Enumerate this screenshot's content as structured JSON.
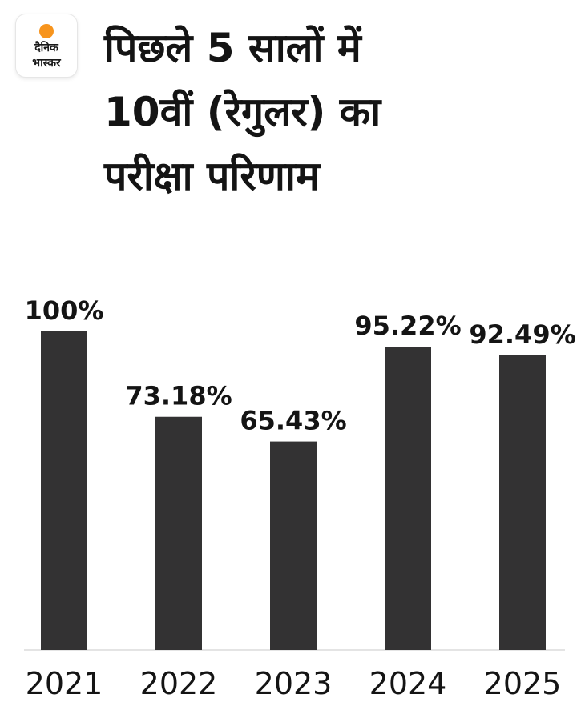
{
  "logo": {
    "line1": "दैनिक",
    "line2": "भास्कर",
    "accent_color": "#f7941d"
  },
  "title_lines": [
    "पिछले 5 सालों में",
    "10वीं (रेगुलर) का",
    "परीक्षा परिणाम"
  ],
  "chart_data": {
    "type": "bar",
    "categories": [
      "2021",
      "2022",
      "2023",
      "2024",
      "2025"
    ],
    "values": [
      100,
      73.18,
      65.43,
      95.22,
      92.49
    ],
    "value_labels": [
      "100%",
      "73.18%",
      "65.43%",
      "95.22%",
      "92.49%"
    ],
    "title": "पिछले 5 सालों में 10वीं (रेगुलर) का परीक्षा परिणाम",
    "xlabel": "",
    "ylabel": "",
    "ylim": [
      0,
      100
    ],
    "grid": false,
    "legend": "none",
    "bar_color": "#333233"
  }
}
